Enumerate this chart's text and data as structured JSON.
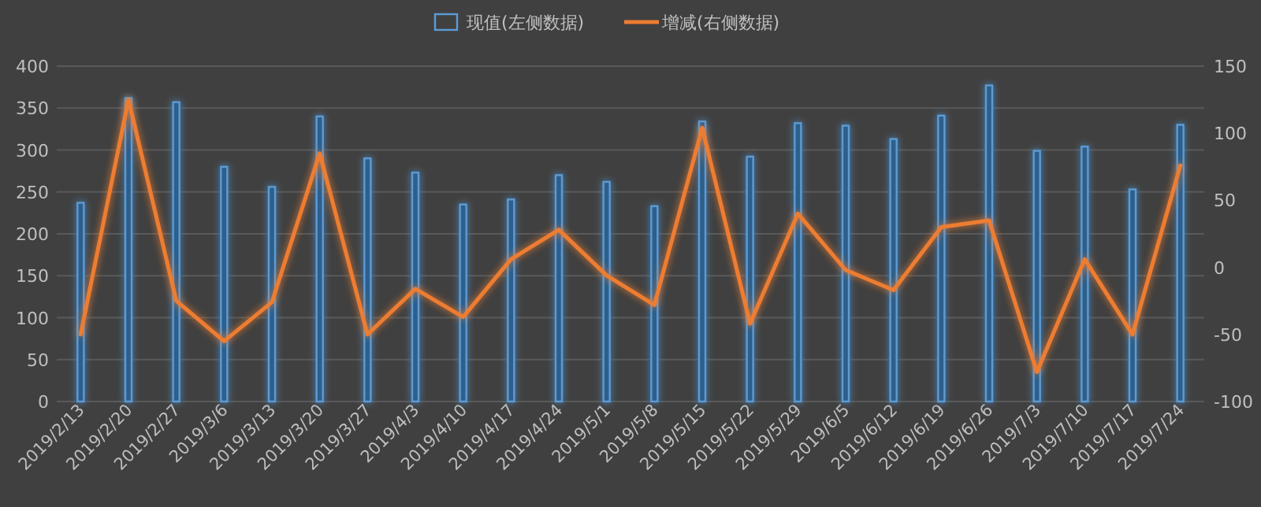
{
  "chart_data": {
    "type": "bar",
    "categories": [
      "2019/2/13",
      "2019/2/20",
      "2019/2/27",
      "2019/3/6",
      "2019/3/13",
      "2019/3/20",
      "2019/3/27",
      "2019/4/3",
      "2019/4/10",
      "2019/4/17",
      "2019/4/24",
      "2019/5/1",
      "2019/5/8",
      "2019/5/15",
      "2019/5/22",
      "2019/5/29",
      "2019/6/5",
      "2019/6/12",
      "2019/6/19",
      "2019/6/26",
      "2019/7/3",
      "2019/7/10",
      "2019/7/17",
      "2019/7/24"
    ],
    "series": [
      {
        "name": "现值(左侧数据)",
        "color": "#5b9bd5",
        "values": [
          237,
          362,
          357,
          280,
          256,
          340,
          290,
          273,
          235,
          241,
          270,
          262,
          233,
          334,
          292,
          332,
          329,
          313,
          341,
          377,
          299,
          304,
          253,
          330
        ]
      },
      {
        "name": "增减(右侧数据)",
        "type": "line",
        "axis": "y2",
        "color": "#ed7d31",
        "values": [
          -50,
          125,
          -25,
          -55,
          -26,
          85,
          -50,
          -16,
          -37,
          6,
          28,
          -6,
          -28,
          104,
          -42,
          40,
          -2,
          -17,
          30,
          35,
          -78,
          6,
          -50,
          76
        ]
      }
    ],
    "ylim": [
      0,
      400
    ],
    "yticks": [
      0,
      50,
      100,
      150,
      200,
      250,
      300,
      350,
      400
    ],
    "y2lim": [
      -100,
      150
    ],
    "y2ticks": [
      -100,
      -50,
      0,
      50,
      100,
      150
    ],
    "grid": "y",
    "legend": "top",
    "marker": "none",
    "line_style": "solid"
  }
}
